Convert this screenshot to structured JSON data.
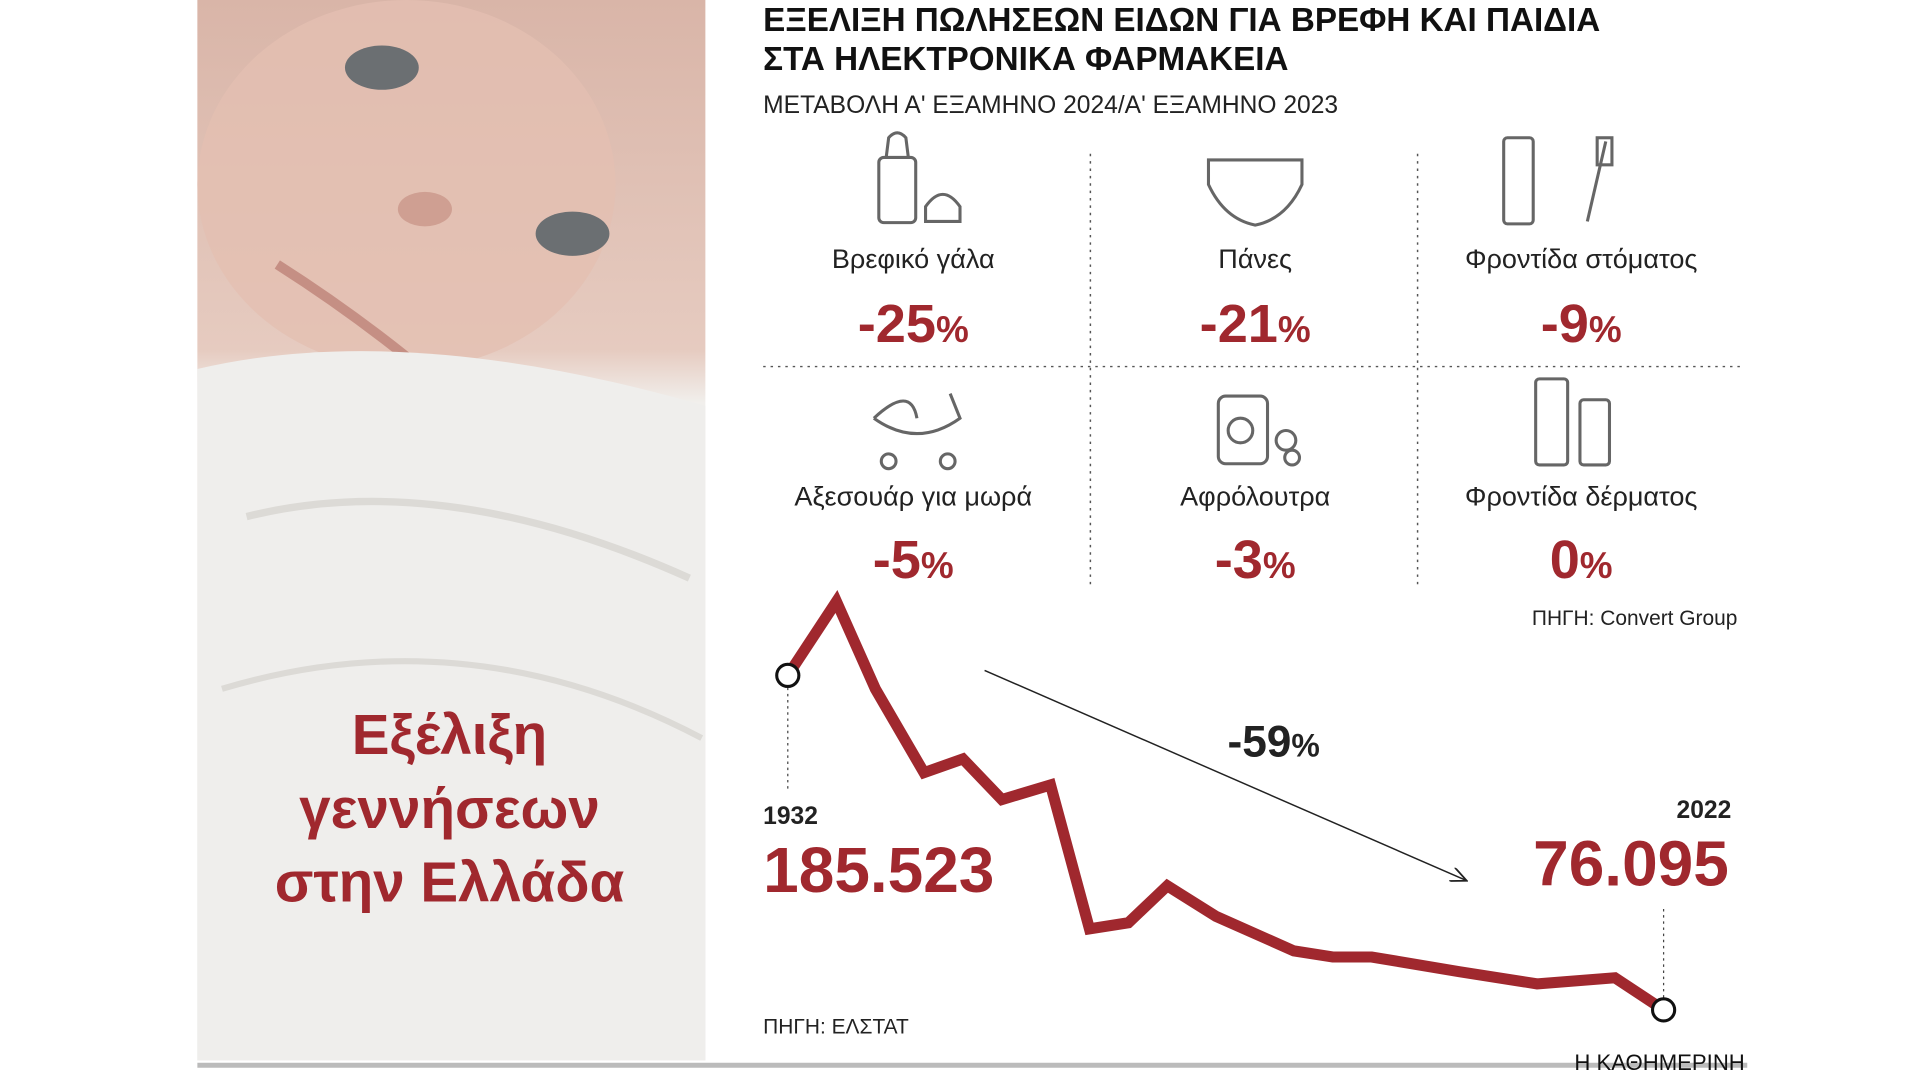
{
  "header": {
    "title_lines": [
      "ΕΞΕΛΙΞΗ ΠΩΛΗΣΕΩΝ ΕΙΔΩΝ ΓΙΑ ΒΡΕΦΗ ΚΑΙ ΠΑΙΔΙΑ",
      "ΣΤΑ ΗΛΕΚΤΡΟΝΙΚΑ ΦΑΡΜΑΚΕΙΑ"
    ],
    "subtitle": "ΜΕΤΑΒΟΛΗ Α' ΕΞΑΜΗΝΟ 2024/Α' ΕΞΑΜΗΝΟ 2023"
  },
  "sales": {
    "items": [
      {
        "label": "Βρεφικό γάλα",
        "value_label": "-25%"
      },
      {
        "label": "Πάνες",
        "value_label": "-21%"
      },
      {
        "label": "Φροντίδα στόματος",
        "value_label": "-9%"
      },
      {
        "label": "Αξεσουάρ για μωρά",
        "value_label": "-5%"
      },
      {
        "label": "Αφρόλουτρα",
        "value_label": "-3%"
      },
      {
        "label": "Φροντίδα δέρματος",
        "value_label": "0%"
      }
    ],
    "source": "ΠΗΓΗ: Convert Group"
  },
  "photo_caption_lines": [
    "Εξέλιξη",
    "γεννήσεων",
    "στην Ελλάδα"
  ],
  "chart_data": {
    "type": "line",
    "x": [
      1932,
      1937,
      1941,
      1946,
      1950,
      1954,
      1959,
      1963,
      1967,
      1971,
      1976,
      1984,
      1988,
      1992,
      2001,
      2009,
      2017,
      2022
    ],
    "values": [
      185523,
      209700,
      181100,
      153700,
      158200,
      144900,
      149700,
      102600,
      104600,
      116700,
      106700,
      95400,
      93400,
      93400,
      88600,
      84600,
      86600,
      76095
    ],
    "value_labels": [
      "185.523",
      null,
      null,
      null,
      null,
      null,
      null,
      null,
      null,
      null,
      null,
      null,
      null,
      null,
      null,
      null,
      null,
      "76.095"
    ],
    "color": "#a0282e",
    "annotation": "-59%",
    "source": "ΠΗΓΗ: ΕΛΣΤΑΤ"
  },
  "footer": {
    "brand": "Η ΚΑΘΗΜΕΡΙΝΗ"
  }
}
